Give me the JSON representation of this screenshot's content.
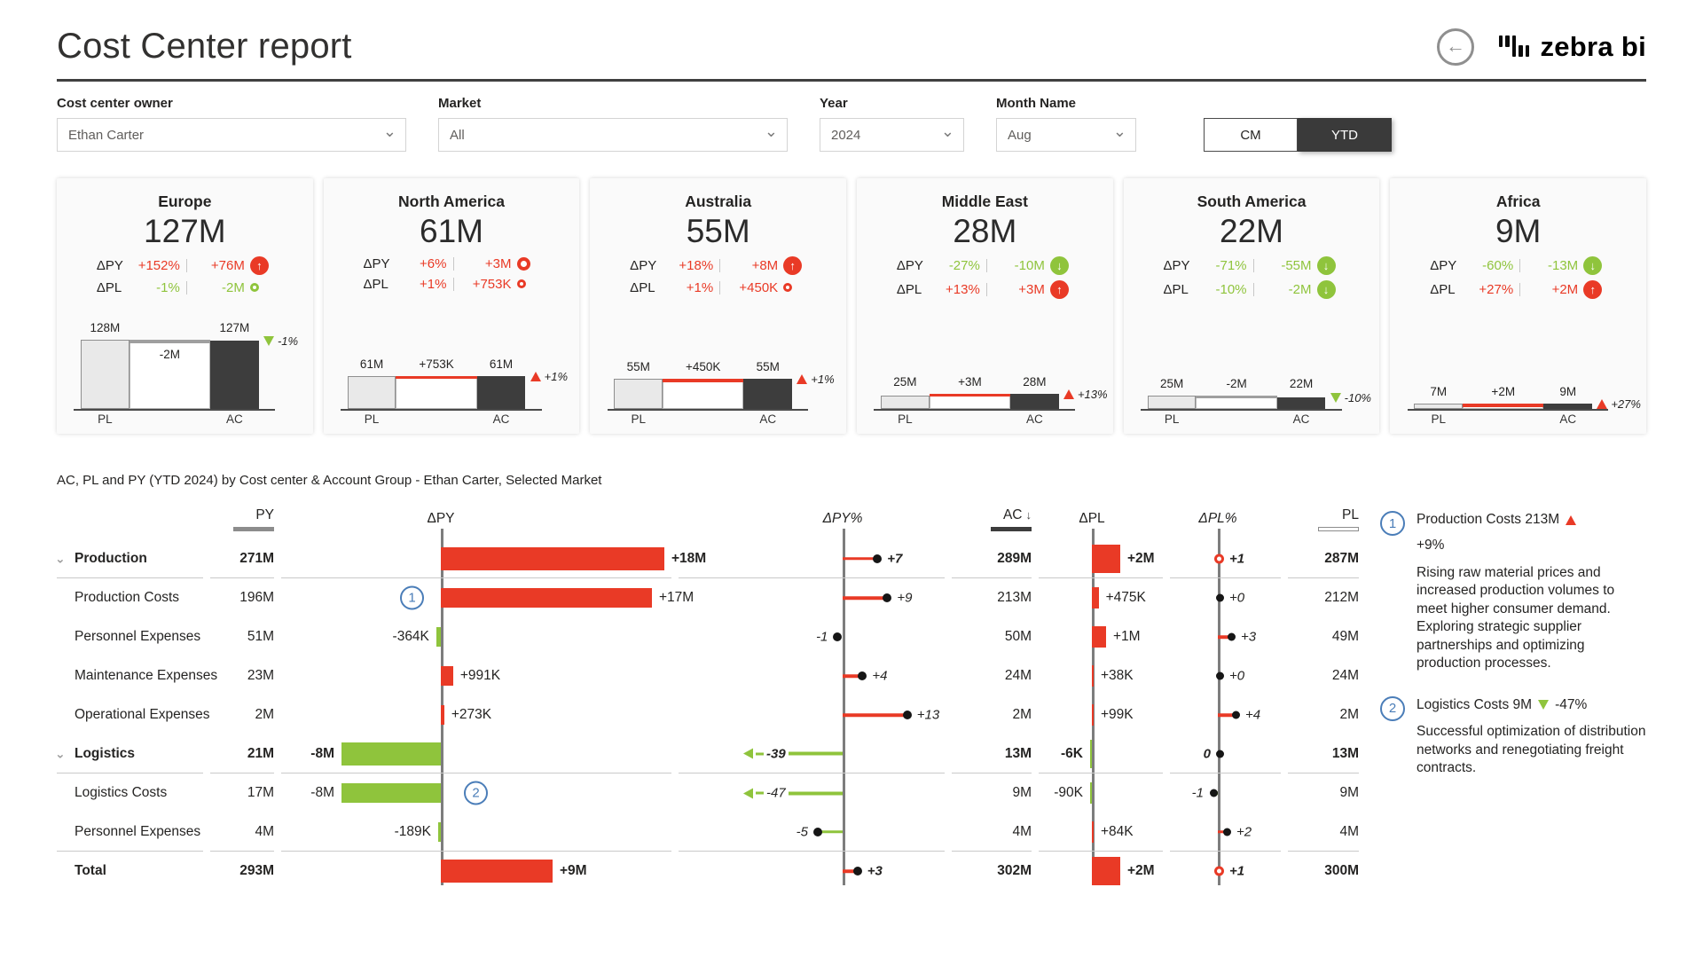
{
  "header": {
    "title": "Cost Center report",
    "brand": "zebra bi"
  },
  "filters": [
    {
      "label": "Cost center owner",
      "value": "Ethan Carter"
    },
    {
      "label": "Market",
      "value": "All"
    },
    {
      "label": "Year",
      "value": "2024"
    },
    {
      "label": "Month Name",
      "value": "Aug"
    }
  ],
  "toggle": {
    "options": [
      "CM",
      "YTD"
    ],
    "selected": "YTD"
  },
  "colors": {
    "red": "#e93a26",
    "green": "#8fc43c",
    "bar_dark": "#3d3d3d",
    "annotation_blue": "#4a7db8"
  },
  "cards": [
    {
      "region": "Europe",
      "value": "127M",
      "dpy_pct": "+152%",
      "dpy_abs": "+76M",
      "dpy_color": "red",
      "dpy_icon": "up-red",
      "dpl_pct": "-1%",
      "dpl_abs": "-2M",
      "dpl_color": "green",
      "dpl_icon": "dot-green",
      "wf": {
        "pl_label": "128M",
        "pl": 128,
        "delta_label": "-2M",
        "delta_sign": -1,
        "ac_label": "127M",
        "ac": 127,
        "marker": "-1%",
        "marker_dir": "down",
        "x_labels": [
          "PL",
          "AC"
        ]
      }
    },
    {
      "region": "North America",
      "value": "61M",
      "dpy_pct": "+6%",
      "dpy_abs": "+3M",
      "dpy_color": "red",
      "dpy_icon": "dot-red-lg",
      "dpl_pct": "+1%",
      "dpl_abs": "+753K",
      "dpl_color": "red",
      "dpl_icon": "dot-red",
      "wf": {
        "pl_label": "61M",
        "pl": 61,
        "delta_label": "+753K",
        "delta_sign": 1,
        "ac_label": "61M",
        "ac": 61,
        "marker": "+1%",
        "marker_dir": "up",
        "x_labels": [
          "PL",
          "AC"
        ]
      }
    },
    {
      "region": "Australia",
      "value": "55M",
      "dpy_pct": "+18%",
      "dpy_abs": "+8M",
      "dpy_color": "red",
      "dpy_icon": "up-red",
      "dpl_pct": "+1%",
      "dpl_abs": "+450K",
      "dpl_color": "red",
      "dpl_icon": "dot-red",
      "wf": {
        "pl_label": "55M",
        "pl": 55,
        "delta_label": "+450K",
        "delta_sign": 1,
        "ac_label": "55M",
        "ac": 55,
        "marker": "+1%",
        "marker_dir": "up",
        "x_labels": [
          "PL",
          "AC"
        ]
      }
    },
    {
      "region": "Middle East",
      "value": "28M",
      "dpy_pct": "-27%",
      "dpy_abs": "-10M",
      "dpy_color": "green",
      "dpy_icon": "down-green",
      "dpl_pct": "+13%",
      "dpl_abs": "+3M",
      "dpl_color": "red",
      "dpl_icon": "up-red",
      "wf": {
        "pl_label": "25M",
        "pl": 25,
        "delta_label": "+3M",
        "delta_sign": 1,
        "ac_label": "28M",
        "ac": 28,
        "marker": "+13%",
        "marker_dir": "up",
        "x_labels": [
          "PL",
          "AC"
        ]
      }
    },
    {
      "region": "South America",
      "value": "22M",
      "dpy_pct": "-71%",
      "dpy_abs": "-55M",
      "dpy_color": "green",
      "dpy_icon": "down-green",
      "dpl_pct": "-10%",
      "dpl_abs": "-2M",
      "dpl_color": "green",
      "dpl_icon": "down-green",
      "wf": {
        "pl_label": "25M",
        "pl": 25,
        "delta_label": "-2M",
        "delta_sign": -1,
        "ac_label": "22M",
        "ac": 22,
        "marker": "-10%",
        "marker_dir": "down",
        "x_labels": [
          "PL",
          "AC"
        ]
      }
    },
    {
      "region": "Africa",
      "value": "9M",
      "dpy_pct": "-60%",
      "dpy_abs": "-13M",
      "dpy_color": "green",
      "dpy_icon": "down-green",
      "dpl_pct": "+27%",
      "dpl_abs": "+2M",
      "dpl_color": "red",
      "dpl_icon": "up-red",
      "wf": {
        "pl_label": "7M",
        "pl": 7,
        "delta_label": "+2M",
        "delta_sign": 1,
        "ac_label": "9M",
        "ac": 9,
        "marker": "+27%",
        "marker_dir": "up",
        "x_labels": [
          "PL",
          "AC"
        ]
      }
    }
  ],
  "table": {
    "title": "AC, PL and PY (YTD 2024) by Cost center & Account Group - Ethan Carter, Selected Market",
    "columns": [
      "PY",
      "ΔPY",
      "ΔPY%",
      "AC",
      "ΔPL",
      "ΔPL%",
      "PL"
    ],
    "sort": {
      "column": "AC",
      "icon": "↓"
    },
    "rows": [
      {
        "label": "Production",
        "bold": true,
        "expandable": true,
        "py": "271M",
        "dpy": {
          "v": 18,
          "label": "+18M"
        },
        "dpyp": {
          "v": 7,
          "label": "+7"
        },
        "ac": "289M",
        "dpl": {
          "v": 2,
          "label": "+2M"
        },
        "dplp": {
          "v": 1,
          "label": "+1",
          "style": "reddot"
        },
        "pl": "287M",
        "sep": true
      },
      {
        "label": "Production Costs",
        "py": "196M",
        "dpy": {
          "v": 17,
          "label": "+17M"
        },
        "dpyp": {
          "v": 9,
          "label": "+9"
        },
        "ac": "213M",
        "dpl": {
          "v": 0.475,
          "label": "+475K"
        },
        "dplp": {
          "v": 0,
          "label": "+0",
          "style": "blackdot"
        },
        "pl": "212M",
        "note": "1"
      },
      {
        "label": "Personnel Expenses",
        "py": "51M",
        "dpy": {
          "v": -0.364,
          "label": "-364K"
        },
        "dpyp": {
          "v": -1,
          "label": "-1",
          "style": "blackdot"
        },
        "ac": "50M",
        "dpl": {
          "v": 1,
          "label": "+1M"
        },
        "dplp": {
          "v": 3,
          "label": "+3"
        },
        "pl": "49M"
      },
      {
        "label": "Maintenance Expenses",
        "py": "23M",
        "dpy": {
          "v": 0.991,
          "label": "+991K"
        },
        "dpyp": {
          "v": 4,
          "label": "+4"
        },
        "ac": "24M",
        "dpl": {
          "v": 0.038,
          "label": "+38K"
        },
        "dplp": {
          "v": 0,
          "label": "+0",
          "style": "blackdot"
        },
        "pl": "24M"
      },
      {
        "label": "Operational Expenses",
        "py": "2M",
        "dpy": {
          "v": 0.273,
          "label": "+273K"
        },
        "dpyp": {
          "v": 13,
          "label": "+13"
        },
        "ac": "2M",
        "dpl": {
          "v": 0.099,
          "label": "+99K"
        },
        "dplp": {
          "v": 4,
          "label": "+4"
        },
        "pl": "2M"
      },
      {
        "label": "Logistics",
        "bold": true,
        "expandable": true,
        "py": "21M",
        "dpy": {
          "v": -8,
          "label": "-8M"
        },
        "dpyp": {
          "v": -39,
          "label": "-39",
          "overflow": true
        },
        "ac": "13M",
        "dpl": {
          "v": -0.006,
          "label": "-6K"
        },
        "dplp": {
          "v": 0,
          "label": "0",
          "style": "blackdot",
          "side": "left"
        },
        "pl": "13M",
        "sep": true
      },
      {
        "label": "Logistics Costs",
        "py": "17M",
        "dpy": {
          "v": -8,
          "label": "-8M"
        },
        "dpyp": {
          "v": -47,
          "label": "-47",
          "overflow": true
        },
        "ac": "9M",
        "dpl": {
          "v": -0.09,
          "label": "-90K"
        },
        "dplp": {
          "v": -1,
          "label": "-1"
        },
        "pl": "9M",
        "note": "2"
      },
      {
        "label": "Personnel Expenses",
        "py": "4M",
        "dpy": {
          "v": -0.189,
          "label": "-189K"
        },
        "dpyp": {
          "v": -5,
          "label": "-5"
        },
        "ac": "4M",
        "dpl": {
          "v": 0.084,
          "label": "+84K"
        },
        "dplp": {
          "v": 2,
          "label": "+2"
        },
        "pl": "4M",
        "sep": true
      },
      {
        "label": "Total",
        "bold": true,
        "py": "293M",
        "dpy": {
          "v": 9,
          "label": "+9M"
        },
        "dpyp": {
          "v": 3,
          "label": "+3"
        },
        "ac": "302M",
        "dpl": {
          "v": 2,
          "label": "+2M"
        },
        "dplp": {
          "v": 1,
          "label": "+1",
          "style": "reddot"
        },
        "pl": "300M"
      }
    ]
  },
  "annotations": [
    {
      "num": "1",
      "title": "Production Costs 213M",
      "arrow": "up",
      "subtitle": "+9%",
      "body": [
        "Rising raw material prices and increased production volumes to meet higher consumer demand.",
        "Exploring strategic supplier partnerships and optimizing production processes."
      ]
    },
    {
      "num": "2",
      "title": "Logistics Costs 9M",
      "arrow": "down",
      "suffix": "-47%",
      "body": [
        "Successful optimization of distribution networks and renegotiating freight contracts."
      ]
    }
  ]
}
